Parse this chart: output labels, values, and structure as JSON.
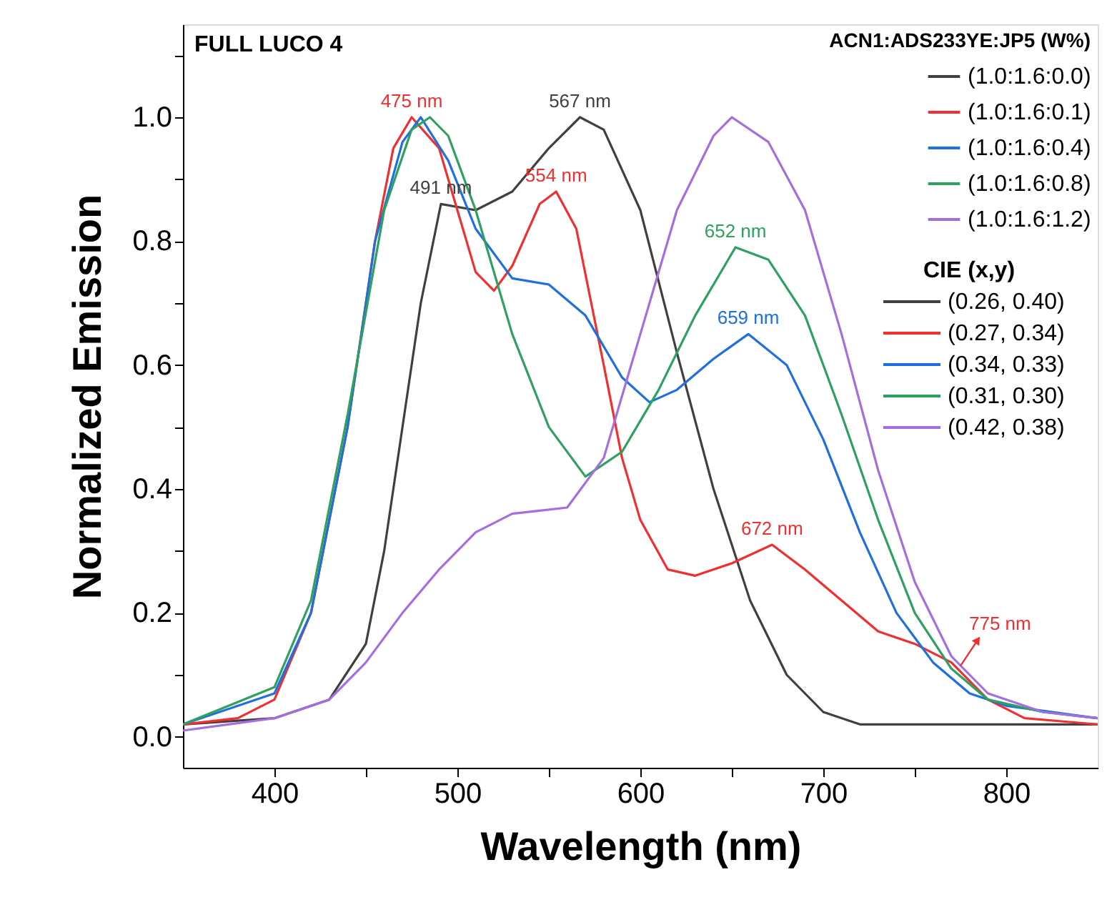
{
  "chart_data": {
    "type": "line",
    "title": "FULL LUCO 4",
    "xlabel": "Wavelength (nm)",
    "ylabel": "Normalized Emission",
    "legend_title": "ACN1:ADS233YE:JP5 (W%)",
    "legend": "top right",
    "grid": false,
    "marker": "none",
    "line_style": "solid",
    "xlim": [
      350,
      850
    ],
    "xticks": [
      400,
      500,
      600,
      700,
      800,
      {
        "value": 450,
        "label": null
      },
      {
        "value": 550,
        "label": null
      },
      {
        "value": 650,
        "label": null
      },
      {
        "value": 750,
        "label": null
      }
    ],
    "ylim": [
      -0.05,
      1.15
    ],
    "yticks": [
      {
        "value": 0,
        "label": "0.0"
      },
      0.2,
      0.4,
      0.6,
      0.8,
      {
        "value": 1,
        "label": "1.0"
      },
      {
        "value": 0.1,
        "label": null
      },
      {
        "value": 0.3,
        "label": null
      },
      {
        "value": 0.5,
        "label": null
      },
      {
        "value": 0.7,
        "label": null
      },
      {
        "value": 0.9,
        "label": null
      },
      {
        "value": 1.1,
        "label": null
      }
    ],
    "series": [
      {
        "name": "(1.0:1.6:0.0)",
        "color": "#404040",
        "x": [
          350,
          400,
          430,
          450,
          460,
          470,
          480,
          491,
          510,
          530,
          550,
          567,
          580,
          600,
          620,
          640,
          660,
          680,
          700,
          720,
          750,
          800,
          850
        ],
        "values": [
          0.02,
          0.03,
          0.06,
          0.15,
          0.3,
          0.5,
          0.7,
          0.86,
          0.85,
          0.88,
          0.95,
          1.0,
          0.98,
          0.85,
          0.62,
          0.4,
          0.22,
          0.1,
          0.04,
          0.02,
          0.02,
          0.02,
          0.02
        ]
      },
      {
        "name": "(1.0:1.6:0.1)",
        "color": "#f03030",
        "x": [
          350,
          380,
          400,
          420,
          440,
          455,
          465,
          475,
          490,
          500,
          510,
          520,
          530,
          545,
          554,
          565,
          580,
          590,
          600,
          615,
          630,
          650,
          672,
          690,
          710,
          730,
          750,
          770,
          790,
          810,
          850
        ],
        "values": [
          0.02,
          0.03,
          0.06,
          0.2,
          0.5,
          0.8,
          0.95,
          1.0,
          0.95,
          0.85,
          0.75,
          0.72,
          0.76,
          0.86,
          0.88,
          0.82,
          0.6,
          0.45,
          0.35,
          0.27,
          0.26,
          0.28,
          0.31,
          0.27,
          0.22,
          0.17,
          0.15,
          0.12,
          0.06,
          0.03,
          0.02
        ]
      },
      {
        "name": "(1.0:1.6:0.4)",
        "color": "#1f6fe0",
        "x": [
          350,
          400,
          420,
          440,
          455,
          470,
          480,
          495,
          510,
          530,
          550,
          570,
          590,
          605,
          620,
          640,
          659,
          680,
          700,
          720,
          740,
          760,
          780,
          800,
          850
        ],
        "values": [
          0.02,
          0.07,
          0.2,
          0.5,
          0.8,
          0.96,
          1.0,
          0.93,
          0.82,
          0.74,
          0.73,
          0.68,
          0.58,
          0.54,
          0.56,
          0.61,
          0.65,
          0.6,
          0.48,
          0.33,
          0.2,
          0.12,
          0.07,
          0.05,
          0.03
        ]
      },
      {
        "name": "(1.0:1.6:0.8)",
        "color": "#2ea060",
        "x": [
          350,
          400,
          420,
          440,
          460,
          475,
          485,
          495,
          510,
          530,
          550,
          570,
          590,
          610,
          630,
          652,
          670,
          690,
          710,
          730,
          750,
          770,
          790,
          820,
          850
        ],
        "values": [
          0.02,
          0.08,
          0.22,
          0.52,
          0.85,
          0.98,
          1.0,
          0.97,
          0.85,
          0.65,
          0.5,
          0.42,
          0.46,
          0.56,
          0.68,
          0.79,
          0.77,
          0.68,
          0.52,
          0.35,
          0.2,
          0.11,
          0.06,
          0.04,
          0.03
        ]
      },
      {
        "name": "(1.0:1.6:1.2)",
        "color": "#a56ee0",
        "x": [
          350,
          400,
          430,
          450,
          470,
          490,
          510,
          530,
          560,
          580,
          600,
          620,
          640,
          650,
          670,
          690,
          710,
          730,
          750,
          770,
          790,
          820,
          850
        ],
        "values": [
          0.01,
          0.03,
          0.06,
          0.12,
          0.2,
          0.27,
          0.33,
          0.36,
          0.37,
          0.45,
          0.65,
          0.85,
          0.97,
          1.0,
          0.96,
          0.85,
          0.65,
          0.43,
          0.25,
          0.13,
          0.07,
          0.04,
          0.03
        ]
      }
    ],
    "annotations": [
      {
        "text": "475 nm",
        "x": 475,
        "y": 1.0
      },
      {
        "text": "491 nm",
        "x": 491,
        "y": 0.86
      },
      {
        "text": "567 nm",
        "x": 567,
        "y": 1.0
      },
      {
        "text": "554 nm",
        "x": 554,
        "y": 0.88
      },
      {
        "text": "652 nm",
        "x": 652,
        "y": 0.79
      },
      {
        "text": "659 nm",
        "x": 659,
        "y": 0.65
      },
      {
        "text": "672 nm",
        "x": 672,
        "y": 0.31
      },
      {
        "text": "775 nm",
        "x": 775,
        "y": 0.11
      },
      "CIE (x,y)",
      "(0.26, 0.40)",
      "(0.27, 0.34)",
      "(0.34, 0.33)",
      "(0.31, 0.30)",
      "(0.42, 0.38)"
    ]
  }
}
